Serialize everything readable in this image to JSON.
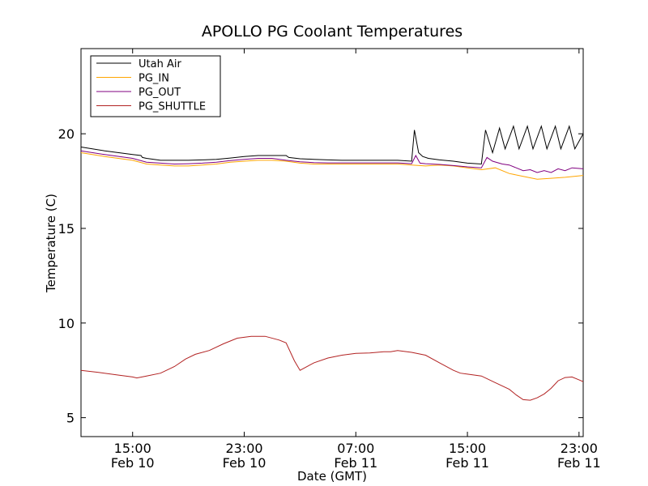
{
  "chart_data": {
    "type": "line",
    "title": "APOLLO PG Coolant Temperatures",
    "xlabel": "Date (GMT)",
    "ylabel": "Temperature (C)",
    "x_unit": "hours since Feb 10 00:00 GMT",
    "xlim": [
      11.3,
      47.3
    ],
    "ylim": [
      4,
      24.5
    ],
    "grid": false,
    "legend_position": "top-left",
    "y_ticks": [
      {
        "value": 5,
        "label": "5"
      },
      {
        "value": 10,
        "label": "10"
      },
      {
        "value": 15,
        "label": "15"
      },
      {
        "value": 20,
        "label": "20"
      }
    ],
    "x_ticks": [
      {
        "value": 15,
        "line1": "15:00",
        "line2": "Feb 10"
      },
      {
        "value": 23,
        "line1": "23:00",
        "line2": "Feb 10"
      },
      {
        "value": 31,
        "line1": "07:00",
        "line2": "Feb 11"
      },
      {
        "value": 39,
        "line1": "15:00",
        "line2": "Feb 11"
      },
      {
        "value": 47,
        "line1": "23:00",
        "line2": "Feb 11"
      }
    ],
    "series": [
      {
        "name": "Utah Air",
        "color": "#000000",
        "x": [
          11.3,
          13,
          15,
          15.6,
          15.7,
          16,
          17,
          18,
          19,
          20,
          21,
          22,
          23,
          24,
          25,
          26,
          26.2,
          27,
          28,
          29,
          30,
          31,
          32,
          33,
          34,
          35,
          35.2,
          35.5,
          35.8,
          36.2,
          37,
          38,
          39,
          40,
          40.3,
          40.8,
          41.3,
          41.7,
          42.3,
          42.7,
          43.3,
          43.7,
          44.3,
          44.7,
          45.3,
          45.7,
          46.3,
          46.7,
          47.3
        ],
        "y": [
          19.3,
          19.1,
          18.9,
          18.85,
          18.75,
          18.7,
          18.6,
          18.6,
          18.6,
          18.62,
          18.65,
          18.72,
          18.8,
          18.85,
          18.85,
          18.85,
          18.75,
          18.68,
          18.65,
          18.62,
          18.6,
          18.6,
          18.6,
          18.6,
          18.6,
          18.55,
          20.2,
          19.0,
          18.8,
          18.7,
          18.62,
          18.55,
          18.45,
          18.4,
          20.2,
          19.0,
          20.3,
          19.2,
          20.4,
          19.2,
          20.4,
          19.2,
          20.4,
          19.2,
          20.4,
          19.2,
          20.4,
          19.2,
          20.0
        ]
      },
      {
        "name": "PG_IN",
        "color": "#ffa500",
        "x": [
          11.3,
          13,
          15,
          16,
          17,
          18,
          19,
          20,
          21,
          22,
          23,
          24,
          25,
          26,
          27,
          28,
          29,
          30,
          31,
          32,
          33,
          34,
          35,
          36,
          37,
          38,
          39,
          40,
          41,
          42,
          43,
          44,
          45,
          46,
          47.3
        ],
        "y": [
          19.0,
          18.8,
          18.6,
          18.4,
          18.35,
          18.3,
          18.3,
          18.35,
          18.4,
          18.5,
          18.55,
          18.6,
          18.6,
          18.55,
          18.45,
          18.4,
          18.4,
          18.4,
          18.4,
          18.4,
          18.4,
          18.4,
          18.35,
          18.3,
          18.35,
          18.3,
          18.2,
          18.1,
          18.2,
          17.9,
          17.75,
          17.6,
          17.65,
          17.7,
          17.8
        ]
      },
      {
        "name": "PG_OUT",
        "color": "#800080",
        "x": [
          11.3,
          13,
          15,
          16,
          17,
          18,
          19,
          20,
          21,
          22,
          23,
          24,
          25,
          26,
          27,
          28,
          29,
          30,
          31,
          32,
          33,
          34,
          35,
          35.3,
          35.6,
          36,
          37,
          38,
          39,
          40,
          40.4,
          40.8,
          41.5,
          42,
          42.5,
          43,
          43.5,
          44,
          44.5,
          45,
          45.5,
          46,
          46.5,
          47.3
        ],
        "y": [
          19.1,
          18.9,
          18.7,
          18.5,
          18.45,
          18.4,
          18.42,
          18.45,
          18.5,
          18.58,
          18.65,
          18.7,
          18.7,
          18.6,
          18.52,
          18.48,
          18.46,
          18.46,
          18.46,
          18.46,
          18.46,
          18.46,
          18.42,
          18.85,
          18.45,
          18.42,
          18.38,
          18.32,
          18.25,
          18.2,
          18.75,
          18.55,
          18.4,
          18.35,
          18.2,
          18.05,
          18.1,
          17.95,
          18.05,
          17.95,
          18.15,
          18.05,
          18.2,
          18.15
        ]
      },
      {
        "name": "PG_SHUTTLE",
        "color": "#b22222",
        "x": [
          11.3,
          12.5,
          14,
          15,
          15.3,
          16,
          17,
          18,
          18.8,
          19.5,
          20.5,
          21.5,
          22.5,
          23.5,
          24.5,
          25.5,
          26,
          26.6,
          27,
          28,
          29,
          30,
          31,
          32,
          33,
          33.5,
          34,
          35,
          36,
          37,
          38,
          38.5,
          39,
          40,
          41,
          42,
          42.5,
          43,
          43.5,
          44,
          44.5,
          45,
          45.5,
          46,
          46.5,
          47,
          47.3
        ],
        "y": [
          7.5,
          7.4,
          7.25,
          7.15,
          7.1,
          7.2,
          7.35,
          7.7,
          8.1,
          8.35,
          8.55,
          8.9,
          9.2,
          9.3,
          9.3,
          9.1,
          8.95,
          8.0,
          7.5,
          7.9,
          8.15,
          8.3,
          8.4,
          8.42,
          8.48,
          8.48,
          8.55,
          8.45,
          8.3,
          7.9,
          7.5,
          7.35,
          7.3,
          7.2,
          6.85,
          6.5,
          6.2,
          5.95,
          5.92,
          6.05,
          6.25,
          6.55,
          6.95,
          7.12,
          7.15,
          7.0,
          6.9
        ]
      }
    ]
  }
}
